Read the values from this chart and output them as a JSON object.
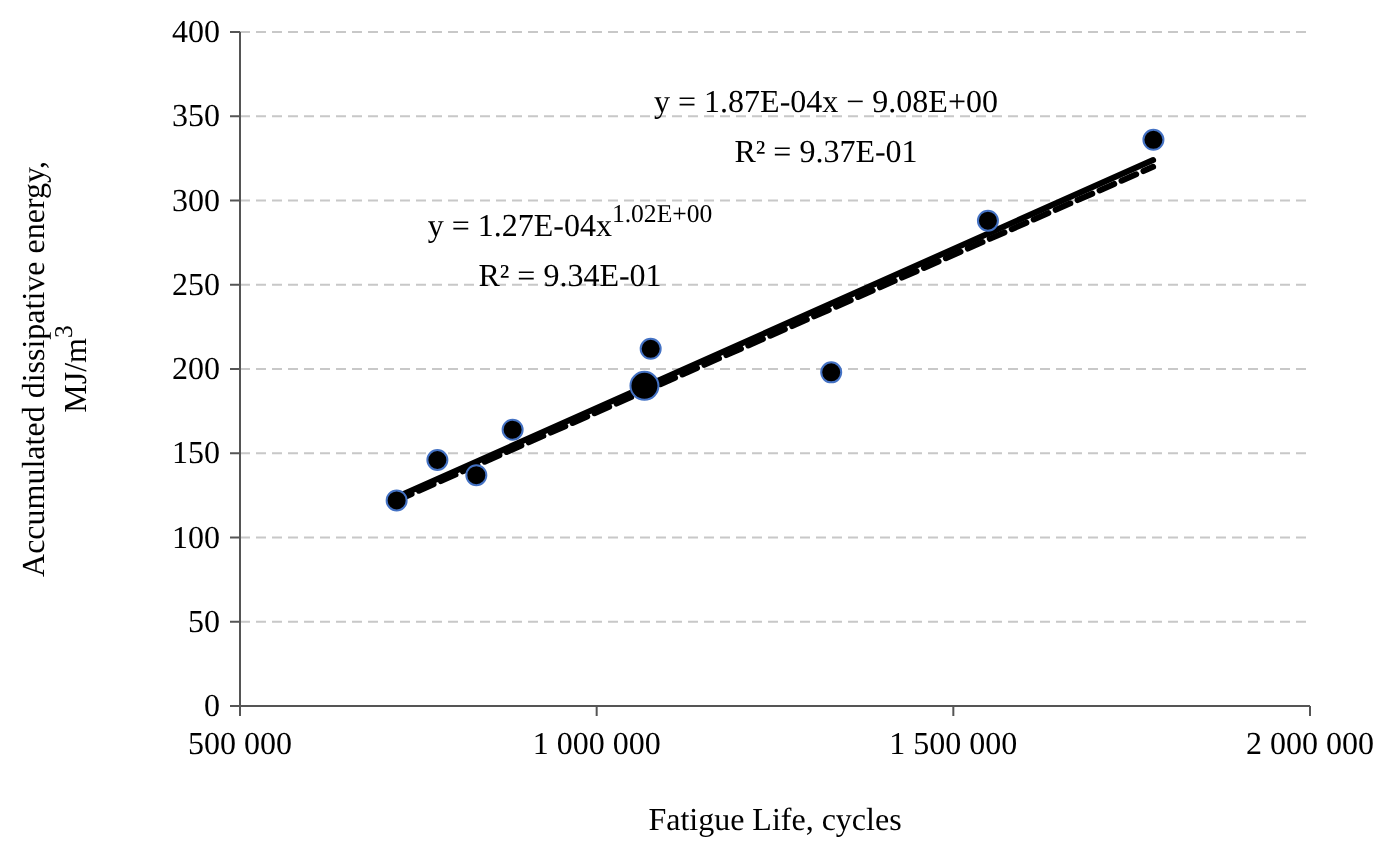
{
  "chart_data": {
    "type": "scatter",
    "xlabel": "Fatigue Life, cycles",
    "ylabel": "Accumulated dissipative energy, MJ/m$^{3}$",
    "xlim": [
      500000,
      2000000
    ],
    "xticks": [
      {
        "value": 500000,
        "label": "500 000"
      },
      {
        "value": 1000000,
        "label": "1 000 000"
      },
      {
        "value": 1500000,
        "label": "1 500 000"
      },
      {
        "value": 2000000,
        "label": "2 000 000"
      }
    ],
    "ylim": [
      0,
      400
    ],
    "yticks": [
      0,
      50,
      100,
      150,
      200,
      250,
      300,
      350,
      400
    ],
    "grid": "y",
    "series": [
      {
        "type": "line",
        "color": "#000000",
        "line_style": "dashed",
        "x": [
          720000,
          1780000
        ],
        "values": [
          122,
          320
        ]
      },
      {
        "type": "line",
        "color": "#000000",
        "line_style": "solid",
        "x": [
          720000,
          1780000
        ],
        "values": [
          124,
          324
        ]
      },
      {
        "color": "#000000",
        "marker": "circle",
        "x": [
          719600,
          776700,
          831300,
          882200,
          1075700,
          1328800,
          1548500,
          1780500
        ],
        "values": [
          122,
          146,
          137,
          164,
          212,
          198,
          288,
          336
        ]
      },
      {
        "color": "#000000",
        "marker": "circle",
        "x": [
          1067000
        ],
        "values": [
          190
        ]
      }
    ],
    "annotations": [
      "y = 1.87E-04x − 9.08E+00",
      "R² = 9.37E-01",
      "y = 1.27E-04x$^{1.02E+00}$",
      "R² = 9.34E-01"
    ]
  }
}
